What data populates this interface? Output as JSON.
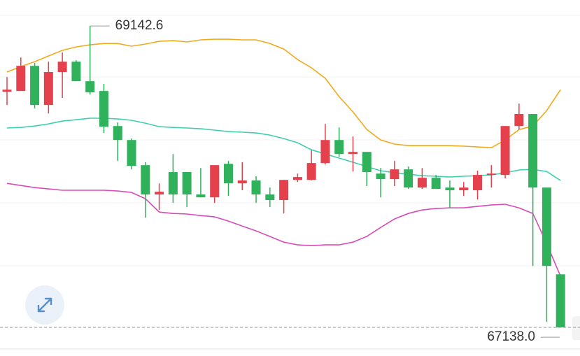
{
  "chart_data": {
    "type": "candlestick",
    "up_color": "#e5414c",
    "down_color": "#2fb25b",
    "ylim": [
      66990,
      69315
    ],
    "open": [
      68705,
      68710,
      68877,
      68617,
      68836,
      68905,
      68775,
      68710,
      68477,
      68384,
      68217,
      68022,
      68171,
      68171,
      68022,
      68003,
      68226,
      68096,
      68115,
      68022,
      67985,
      68119,
      68119,
      68231,
      68384,
      68291,
      68305,
      68161,
      68124,
      68189,
      68068,
      68133,
      68068,
      68050,
      68050,
      68152,
      68152,
      68477,
      68557,
      68068,
      67491
    ],
    "high": [
      68803,
      68933,
      68896,
      68905,
      68966,
      68915,
      69142.6,
      68757,
      68501,
      68394,
      68236,
      68096,
      68291,
      68171,
      68198,
      68217,
      68245,
      68236,
      68143,
      68068,
      68119,
      68161,
      68315,
      68491,
      68468,
      68408,
      68305,
      68198,
      68245,
      68208,
      68198,
      68152,
      68115,
      68105,
      68180,
      68217,
      68477,
      68626,
      68557,
      68068,
      67491
    ],
    "low": [
      68617,
      68710,
      68594,
      68561,
      68664,
      68775,
      68687,
      68431,
      68245,
      68189,
      67868,
      67919,
      67966,
      67938,
      68003,
      67966,
      68012,
      68050,
      67966,
      67938,
      67896,
      68105,
      68115,
      68222,
      68273,
      68175,
      68078,
      68003,
      68078,
      68059,
      68059,
      68059,
      67929,
      68012,
      67989,
      68068,
      68129,
      68454,
      67547,
      67175,
      67138
    ],
    "close": [
      68719,
      68877,
      68617,
      68836,
      68905,
      68775,
      68701,
      68473,
      68384,
      68212,
      68022,
      68040,
      68022,
      68022,
      68003,
      68217,
      68096,
      68115,
      68022,
      67985,
      68119,
      68138,
      68231,
      68384,
      68291,
      68305,
      68171,
      68124,
      68189,
      68068,
      68133,
      68059,
      68050,
      68068,
      68152,
      68161,
      68477,
      68557,
      68068,
      67547,
      67138
    ],
    "bands": [
      {
        "color": "#f0aa1c",
        "values": [
          68836,
          68873,
          68905,
          68943,
          68980,
          69003,
          69017,
          69026,
          69026,
          69008,
          69022,
          69040,
          69045,
          69036,
          69050,
          69054,
          69054,
          69050,
          69050,
          69026,
          68989,
          68919,
          68864,
          68794,
          68673,
          68571,
          68454,
          68384,
          68357,
          68347,
          68347,
          68347,
          68347,
          68343,
          68338,
          68333,
          68384,
          68454,
          68477,
          68580,
          68719
        ]
      },
      {
        "color": "#3fcfae",
        "values": [
          68464,
          68468,
          68477,
          68491,
          68510,
          68519,
          68529,
          68529,
          68524,
          68515,
          68496,
          68473,
          68468,
          68464,
          68459,
          68450,
          68440,
          68436,
          68431,
          68417,
          68394,
          68366,
          68319,
          68291,
          68264,
          68236,
          68208,
          68180,
          68166,
          68157,
          68147,
          68143,
          68138,
          68143,
          68147,
          68152,
          68166,
          68185,
          68189,
          68175,
          68115
        ]
      },
      {
        "color": "#d94bb6",
        "values": [
          68096,
          68082,
          68068,
          68059,
          68050,
          68050,
          68050,
          68050,
          68045,
          68036,
          67994,
          67905,
          67896,
          67892,
          67882,
          67873,
          67845,
          67812,
          67780,
          67743,
          67705,
          67687,
          67682,
          67687,
          67687,
          67705,
          67743,
          67803,
          67859,
          67896,
          67919,
          67929,
          67933,
          67933,
          67943,
          67952,
          67957,
          67933,
          67896,
          67696,
          67478
        ]
      }
    ],
    "high_label": 69142.6,
    "low_label": {
      "value": 67138,
      "label": "67138.0"
    }
  }
}
